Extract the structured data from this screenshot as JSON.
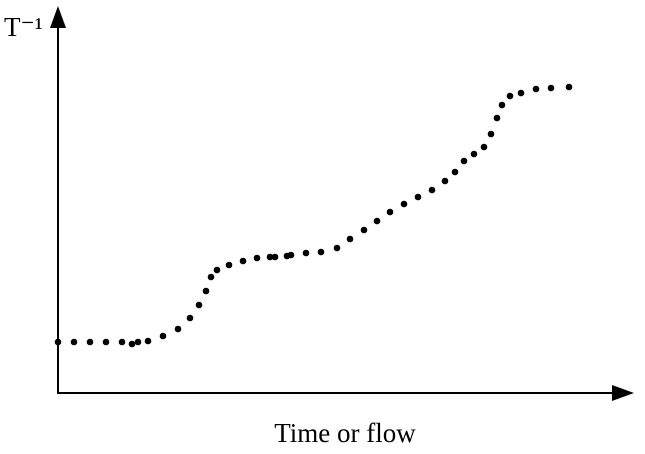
{
  "chart_data": {
    "type": "scatter",
    "xlabel": "Time or flow",
    "ylabel": "T⁻¹",
    "color": "#000000",
    "xlim": [
      0,
      575
    ],
    "ylim": [
      0,
      383
    ],
    "x": [
      0,
      16,
      32,
      48,
      64,
      74,
      80,
      90,
      105,
      120,
      132,
      141,
      148,
      153,
      159,
      171,
      185,
      199,
      212,
      217,
      229,
      233,
      248,
      263,
      279,
      292,
      306,
      319,
      332,
      346,
      360,
      374,
      387,
      397,
      406,
      416,
      426,
      433,
      439,
      444,
      452,
      463,
      478,
      493,
      511
    ],
    "y": [
      51,
      51,
      51,
      51,
      51,
      49,
      51,
      52,
      57,
      64,
      75,
      88,
      102,
      116,
      123,
      128,
      132,
      135,
      136,
      136,
      137,
      138,
      140,
      141,
      145,
      154,
      163,
      172,
      181,
      189,
      196,
      203,
      212,
      221,
      232,
      239,
      246,
      259,
      275,
      288,
      297,
      300,
      304,
      305,
      306
    ]
  }
}
